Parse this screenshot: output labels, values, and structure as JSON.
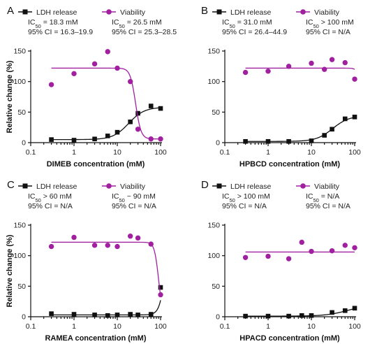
{
  "colors": {
    "ldh": "#111111",
    "viability": "#a020a0",
    "axis": "#111111"
  },
  "chart_data": [
    {
      "type": "scatter",
      "panel": "A",
      "xlabel": "DIMEB concentration (mM)",
      "ylabel": "Relative change (%)",
      "xscale": "log",
      "xlim": [
        0.1,
        100
      ],
      "ylim": [
        0,
        150
      ],
      "xticks": [
        "0.1",
        "1",
        "10",
        "100"
      ],
      "yticks": [
        "0",
        "50",
        "100",
        "150"
      ],
      "legend": [
        {
          "name": "LDH release",
          "line1_pre": "IC",
          "line1_sub": "50",
          "line1_post": " = 18.3 mM",
          "line2": "95% CI = 16.3–19.9"
        },
        {
          "name": "Viability",
          "line1_pre": "IC",
          "line1_sub": "50",
          "line1_post": " = 26.5 mM",
          "line2": "95% CI = 25.3–28.5"
        }
      ],
      "series": [
        {
          "name": "LDH release",
          "marker": "square",
          "x": [
            0.3,
            1,
            3,
            6,
            10,
            20,
            30,
            60,
            100
          ],
          "y": [
            5,
            4,
            6,
            11,
            17,
            34,
            48,
            60,
            56
          ],
          "fit": {
            "bottom": 5,
            "top": 58,
            "ec50": 18.3,
            "hill": 2.4
          }
        },
        {
          "name": "Viability",
          "marker": "circle",
          "x": [
            0.3,
            1,
            3,
            6,
            10,
            20,
            30,
            60,
            100
          ],
          "y": [
            95,
            113,
            129,
            149,
            122,
            100,
            22,
            6,
            6
          ],
          "fit": {
            "bottom": 6,
            "top": 122,
            "ec50": 26.5,
            "hill": -7
          }
        }
      ]
    },
    {
      "type": "scatter",
      "panel": "B",
      "xlabel": "HPBCD concentration (mM)",
      "ylabel": "",
      "xscale": "log",
      "xlim": [
        0.1,
        100
      ],
      "ylim": [
        0,
        150
      ],
      "xticks": [
        "0.1",
        "1",
        "10",
        "100"
      ],
      "yticks": [
        "0",
        "50",
        "100",
        "150"
      ],
      "legend": [
        {
          "name": "LDH release",
          "line1_pre": "IC",
          "line1_sub": "50",
          "line1_post": " = 31.0 mM",
          "line2": "95% CI = 26.4–44.9"
        },
        {
          "name": "Viability",
          "line1_pre": "IC",
          "line1_sub": "50",
          "line1_post": " > 100 mM",
          "line2": "95% CI = N/A"
        }
      ],
      "series": [
        {
          "name": "LDH release",
          "marker": "square",
          "x": [
            0.3,
            1,
            3,
            10,
            20,
            30,
            60,
            100
          ],
          "y": [
            2,
            2,
            2,
            3,
            12,
            22,
            39,
            42
          ],
          "fit": {
            "bottom": 2,
            "top": 44,
            "ec50": 31,
            "hill": 2.3
          }
        },
        {
          "name": "Viability",
          "marker": "circle",
          "x": [
            0.3,
            1,
            3,
            10,
            20,
            30,
            60,
            100
          ],
          "y": [
            115,
            117,
            125,
            130,
            120,
            136,
            131,
            104
          ],
          "fit": {
            "bottom": 0,
            "top": 122,
            "ec50": 150,
            "hill": -10
          }
        }
      ]
    },
    {
      "type": "scatter",
      "panel": "C",
      "xlabel": "RAMEA concentration (mM)",
      "ylabel": "Relative change (%)",
      "xscale": "log",
      "xlim": [
        0.1,
        100
      ],
      "ylim": [
        0,
        150
      ],
      "xticks": [
        "0.1",
        "1",
        "10",
        "100"
      ],
      "yticks": [
        "0",
        "50",
        "100",
        "150"
      ],
      "legend": [
        {
          "name": "LDH release",
          "line1_pre": "IC",
          "line1_sub": "50",
          "line1_post": " > 60 mM",
          "line2": "95% CI = N/A"
        },
        {
          "name": "Viability",
          "line1_pre": "IC",
          "line1_sub": "50",
          "line1_post": " ~ 90 mM",
          "line2": "95% CI = N/A"
        }
      ],
      "series": [
        {
          "name": "LDH release",
          "marker": "square",
          "x": [
            0.3,
            1,
            3,
            6,
            10,
            20,
            30,
            60,
            100
          ],
          "y": [
            5,
            4,
            3,
            2,
            3,
            4,
            3,
            4,
            48
          ],
          "fit": {
            "bottom": 3,
            "top": 300,
            "ec50": 150,
            "hill": 6
          }
        },
        {
          "name": "Viability",
          "marker": "circle",
          "x": [
            0.3,
            1,
            3,
            6,
            10,
            20,
            30,
            60,
            100
          ],
          "y": [
            115,
            130,
            117,
            117,
            115,
            132,
            129,
            119,
            36
          ],
          "fit": {
            "bottom": 0,
            "top": 122,
            "ec50": 90,
            "hill": -9
          }
        }
      ]
    },
    {
      "type": "scatter",
      "panel": "D",
      "xlabel": "HPACD concentration (mM)",
      "ylabel": "",
      "xscale": "log",
      "xlim": [
        0.1,
        100
      ],
      "ylim": [
        0,
        150
      ],
      "xticks": [
        "0.1",
        "1",
        "10",
        "100"
      ],
      "yticks": [
        "0",
        "50",
        "100",
        "150"
      ],
      "legend": [
        {
          "name": "LDH release",
          "line1_pre": "IC",
          "line1_sub": "50",
          "line1_post": " > 100 mM",
          "line2": "95% CI = N/A"
        },
        {
          "name": "Viability",
          "line1_pre": "IC",
          "line1_sub": "50",
          "line1_post": " = N/A",
          "line2": "95% CI = N/A"
        }
      ],
      "series": [
        {
          "name": "LDH release",
          "marker": "square",
          "x": [
            0.3,
            1,
            3,
            6,
            10,
            30,
            60,
            100
          ],
          "y": [
            1,
            1,
            1,
            2,
            2,
            7,
            10,
            14
          ],
          "fit": {
            "bottom": 1,
            "top": 20,
            "ec50": 70,
            "hill": 1.7
          }
        },
        {
          "name": "Viability",
          "marker": "circle",
          "x": [
            0.3,
            1,
            3,
            6,
            10,
            30,
            60,
            100
          ],
          "y": [
            97,
            99,
            95,
            122,
            107,
            108,
            117,
            113
          ],
          "fit": {
            "bottom": 106,
            "top": 106,
            "ec50": 10,
            "hill": 1
          }
        }
      ]
    }
  ]
}
